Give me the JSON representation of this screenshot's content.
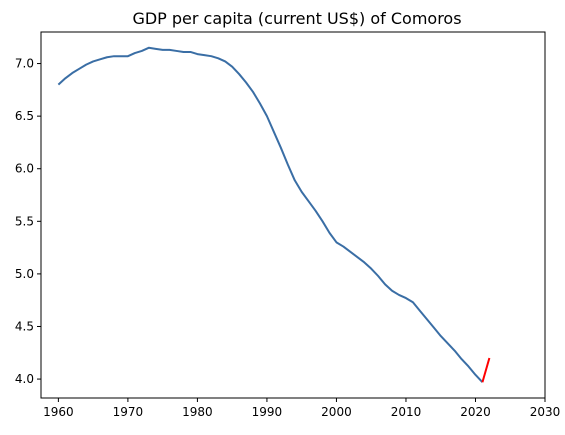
{
  "chart_data": {
    "type": "line",
    "title": "GDP per capita (current US$) of Comoros",
    "xlabel": "",
    "ylabel": "",
    "xlim": [
      1957.5,
      2030
    ],
    "ylim": [
      3.82,
      7.3
    ],
    "xticks": [
      1960,
      1970,
      1980,
      1990,
      2000,
      2010,
      2020,
      2030
    ],
    "yticks": [
      4.0,
      4.5,
      5.0,
      5.5,
      6.0,
      6.5,
      7.0
    ],
    "grid": false,
    "series": [
      {
        "color": "#3a6ea5",
        "x": [
          1960,
          1961,
          1962,
          1963,
          1964,
          1965,
          1966,
          1967,
          1968,
          1969,
          1970,
          1971,
          1972,
          1973,
          1974,
          1975,
          1976,
          1977,
          1978,
          1979,
          1980,
          1981,
          1982,
          1983,
          1984,
          1985,
          1986,
          1987,
          1988,
          1989,
          1990,
          1991,
          1992,
          1993,
          1994,
          1995,
          1996,
          1997,
          1998,
          1999,
          2000,
          2001,
          2002,
          2003,
          2004,
          2005,
          2006,
          2007,
          2008,
          2009,
          2010,
          2011,
          2012,
          2013,
          2014,
          2015,
          2016,
          2017,
          2018,
          2019,
          2020,
          2021
        ],
        "values": [
          6.8,
          6.86,
          6.91,
          6.95,
          6.99,
          7.02,
          7.04,
          7.06,
          7.07,
          7.07,
          7.07,
          7.1,
          7.12,
          7.15,
          7.14,
          7.13,
          7.13,
          7.12,
          7.11,
          7.11,
          7.09,
          7.08,
          7.07,
          7.05,
          7.02,
          6.97,
          6.9,
          6.82,
          6.73,
          6.62,
          6.5,
          6.35,
          6.2,
          6.04,
          5.89,
          5.78,
          5.69,
          5.6,
          5.5,
          5.39,
          5.3,
          5.26,
          5.21,
          5.16,
          5.11,
          5.05,
          4.98,
          4.9,
          4.84,
          4.8,
          4.77,
          4.73,
          4.65,
          4.57,
          4.49,
          4.41,
          4.34,
          4.27,
          4.19,
          4.12,
          4.04,
          3.97
        ]
      },
      {
        "color": "#ff0000",
        "x": [
          2021,
          2022
        ],
        "values": [
          3.97,
          4.2
        ]
      }
    ]
  }
}
